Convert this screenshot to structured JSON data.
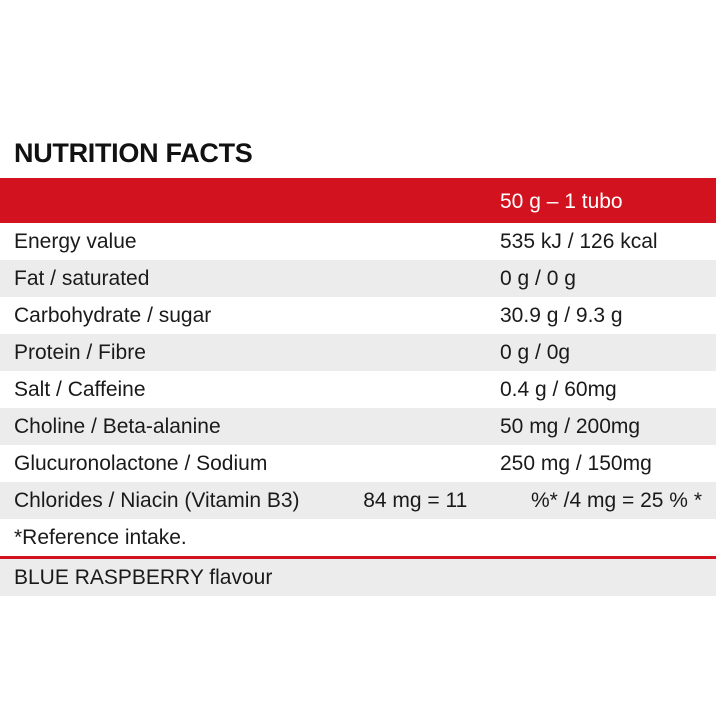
{
  "title": "NUTRITION FACTS",
  "header": {
    "serving": "50 g – 1 tubo"
  },
  "rows": [
    {
      "label": "Energy value",
      "value": "535 kJ / 126 kcal"
    },
    {
      "label": "Fat / saturated",
      "value": "0 g / 0 g"
    },
    {
      "label": "Carbohydrate / sugar",
      "value": "30.9 g / 9.3 g"
    },
    {
      "label": "Protein / Fibre",
      "value": "0 g / 0g"
    },
    {
      "label": "Salt / Caffeine",
      "value": "0.4 g / 60mg"
    },
    {
      "label": "Choline / Beta-alanine",
      "value": "50 mg / 200mg"
    },
    {
      "label": "Glucuronolactone / Sodium",
      "value": "250 mg / 150mg"
    }
  ],
  "chlorides_row": {
    "label": "Chlorides / Niacin (Vitamin B3)",
    "value_a": "84 mg = 11",
    "value_b": "%* /4 mg = 25 % *"
  },
  "footnote": "*Reference intake.",
  "flavour": "BLUE RASPBERRY flavour",
  "colors": {
    "accent_red": "#d2121e",
    "row_gray": "#ececec"
  }
}
